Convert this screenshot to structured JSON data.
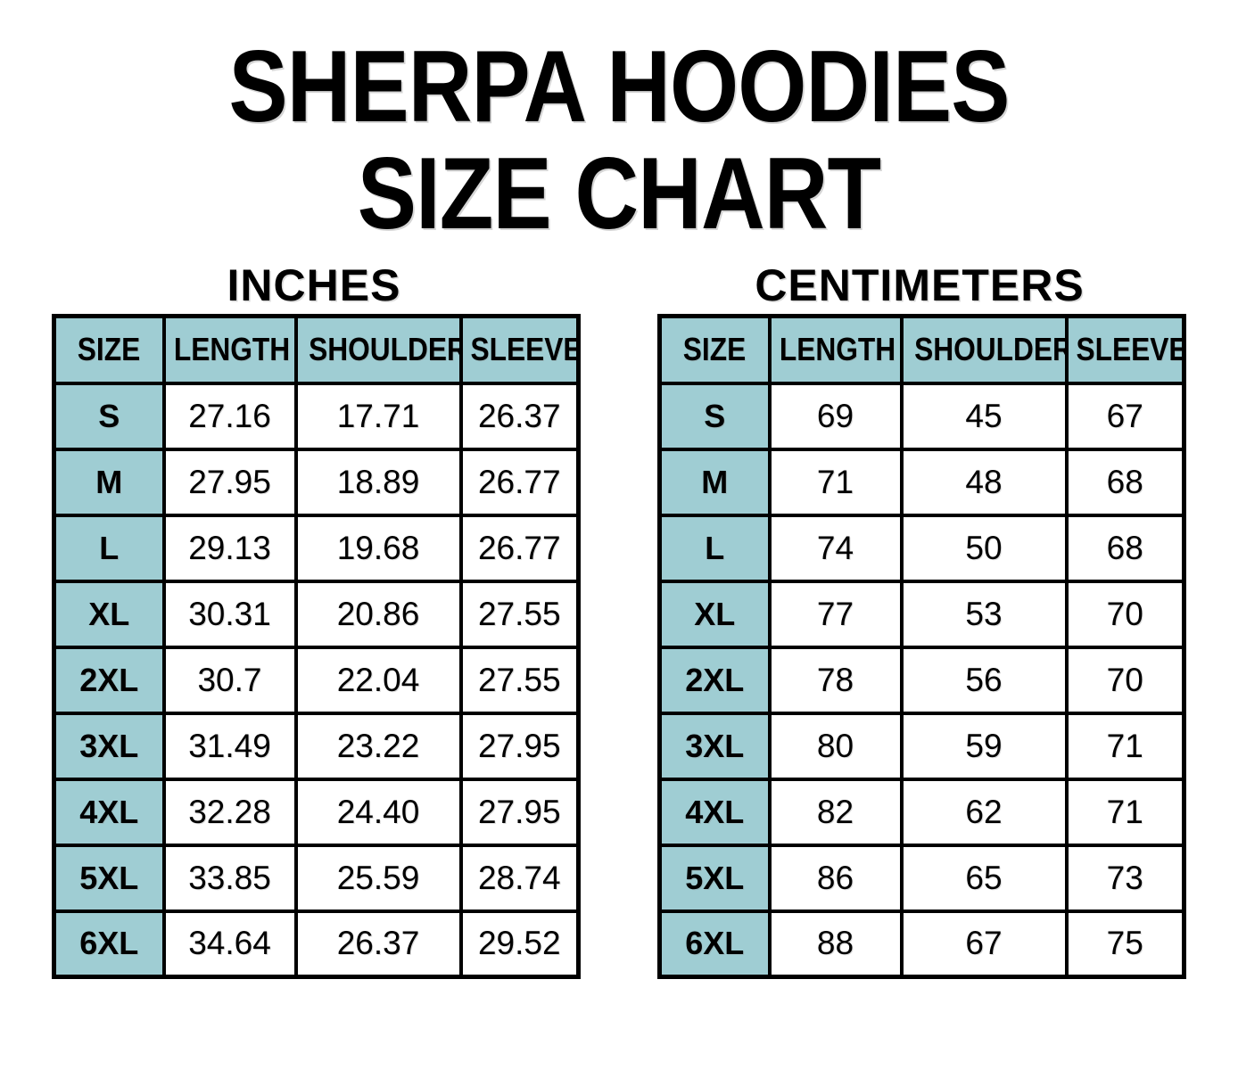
{
  "page_title": {
    "line1": "SHERPA HOODIES",
    "line2": "SIZE CHART"
  },
  "colors": {
    "header_fill": "#9FCDD3",
    "border": "#000000",
    "background": "#FFFFFF",
    "text": "#000000"
  },
  "chart_data": [
    {
      "type": "table",
      "title": "INCHES",
      "columns": [
        "SIZE",
        "LENGTH",
        "SHOULDER",
        "SLEEVE"
      ],
      "rows": [
        [
          "S",
          "27.16",
          "17.71",
          "26.37"
        ],
        [
          "M",
          "27.95",
          "18.89",
          "26.77"
        ],
        [
          "L",
          "29.13",
          "19.68",
          "26.77"
        ],
        [
          "XL",
          "30.31",
          "20.86",
          "27.55"
        ],
        [
          "2XL",
          "30.7",
          "22.04",
          "27.55"
        ],
        [
          "3XL",
          "31.49",
          "23.22",
          "27.95"
        ],
        [
          "4XL",
          "32.28",
          "24.40",
          "27.95"
        ],
        [
          "5XL",
          "33.85",
          "25.59",
          "28.74"
        ],
        [
          "6XL",
          "34.64",
          "26.37",
          "29.52"
        ]
      ]
    },
    {
      "type": "table",
      "title": "CENTIMETERS",
      "columns": [
        "SIZE",
        "LENGTH",
        "SHOULDER",
        "SLEEVE"
      ],
      "rows": [
        [
          "S",
          "69",
          "45",
          "67"
        ],
        [
          "M",
          "71",
          "48",
          "68"
        ],
        [
          "L",
          "74",
          "50",
          "68"
        ],
        [
          "XL",
          "77",
          "53",
          "70"
        ],
        [
          "2XL",
          "78",
          "56",
          "70"
        ],
        [
          "3XL",
          "80",
          "59",
          "71"
        ],
        [
          "4XL",
          "82",
          "62",
          "71"
        ],
        [
          "5XL",
          "86",
          "65",
          "73"
        ],
        [
          "6XL",
          "88",
          "67",
          "75"
        ]
      ]
    }
  ]
}
